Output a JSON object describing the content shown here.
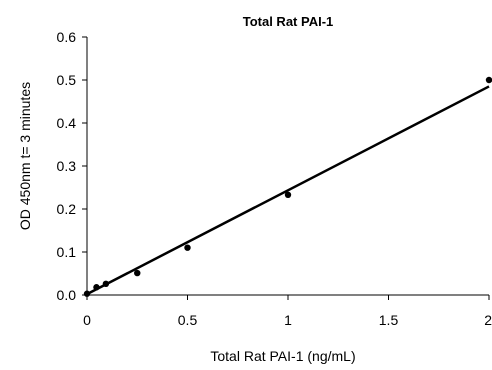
{
  "chart_data": {
    "type": "scatter",
    "title": "Total Rat PAI-1",
    "xlabel": "Total Rat PAI-1 (ng/mL)",
    "ylabel": "OD 450nm t= 3 minutes",
    "xlim": [
      0,
      2
    ],
    "ylim": [
      0,
      0.6
    ],
    "x_ticks": [
      "0",
      "0.5",
      "1",
      "1.5",
      "2"
    ],
    "y_ticks": [
      "0.0",
      "0.1",
      "0.2",
      "0.3",
      "0.4",
      "0.5",
      "0.6"
    ],
    "grid": false,
    "legend": "none",
    "point_color": "#000000",
    "series": [
      {
        "x": [
          0,
          0.047,
          0.094,
          0.25,
          0.5,
          1,
          2
        ],
        "y": [
          0.003,
          0.018,
          0.026,
          0.051,
          0.11,
          0.233,
          0.5
        ]
      }
    ],
    "trendline": {
      "type": "linear",
      "start": [
        0,
        0.002
      ],
      "end": [
        2,
        0.485
      ]
    }
  }
}
